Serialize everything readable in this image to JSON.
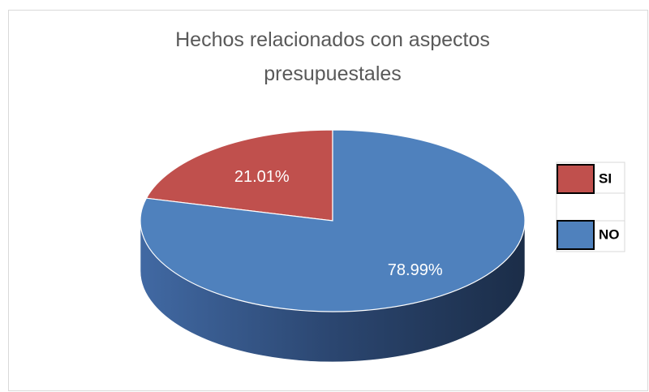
{
  "chart_data": {
    "type": "pie3d",
    "title": "Hechos relacionados con aspectos presupuestales",
    "categories": [
      "SI",
      "NO"
    ],
    "values": [
      21.01,
      78.99
    ],
    "value_labels": [
      "21.01%",
      "78.99%"
    ],
    "colors": [
      "#c0504d",
      "#4f81bd"
    ],
    "legend": "right"
  }
}
